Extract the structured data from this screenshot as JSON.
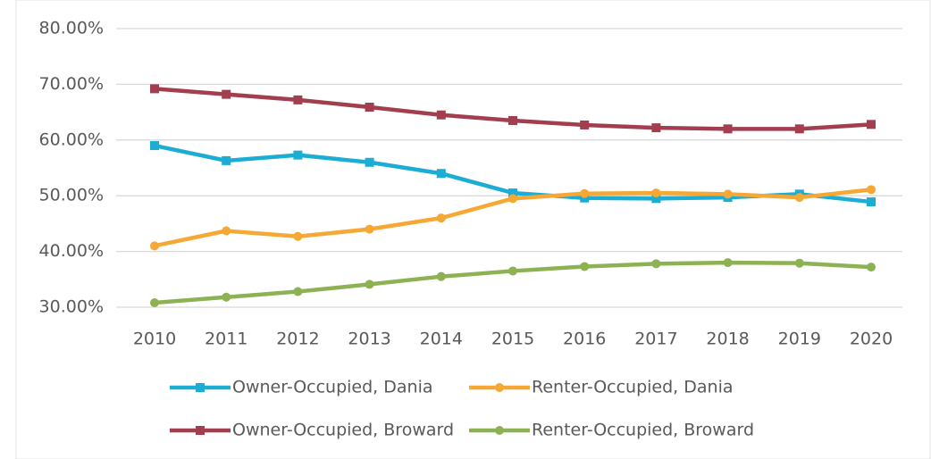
{
  "chart_data": {
    "type": "line",
    "categories": [
      "2010",
      "2011",
      "2012",
      "2013",
      "2014",
      "2015",
      "2016",
      "2017",
      "2018",
      "2019",
      "2020"
    ],
    "series": [
      {
        "name": "Owner-Occupied, Dania",
        "color": "#1cadd4",
        "marker": "square",
        "values": [
          59.0,
          56.3,
          57.3,
          56.0,
          54.0,
          50.5,
          49.6,
          49.5,
          49.7,
          50.3,
          48.9
        ]
      },
      {
        "name": "Renter-Occupied, Dania",
        "color": "#f5a834",
        "marker": "circle",
        "values": [
          41.0,
          43.7,
          42.7,
          44.0,
          46.0,
          49.5,
          50.4,
          50.5,
          50.3,
          49.7,
          51.1
        ]
      },
      {
        "name": "Owner-Occupied, Broward",
        "color": "#a33e4f",
        "marker": "square",
        "values": [
          69.2,
          68.2,
          67.2,
          65.9,
          64.5,
          63.5,
          62.7,
          62.2,
          62.0,
          62.0,
          62.8
        ]
      },
      {
        "name": "Renter-Occupied, Broward",
        "color": "#8db253",
        "marker": "circle",
        "values": [
          30.8,
          31.8,
          32.8,
          34.1,
          35.5,
          36.5,
          37.3,
          37.8,
          38.0,
          37.9,
          37.2
        ]
      }
    ],
    "ylim": [
      30,
      80
    ],
    "yticks": [
      {
        "value": 30,
        "label": "30.00%"
      },
      {
        "value": 40,
        "label": "40.00%"
      },
      {
        "value": 50,
        "label": "50.00%"
      },
      {
        "value": 60,
        "label": "60.00%"
      },
      {
        "value": 70,
        "label": "70.00%"
      },
      {
        "value": 80,
        "label": "80.00%"
      }
    ],
    "grid": true,
    "legend": "bottom"
  }
}
